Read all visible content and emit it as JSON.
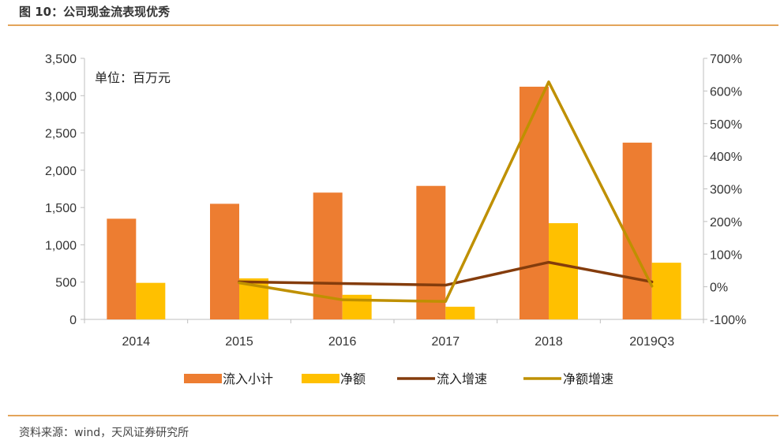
{
  "figure": {
    "title": "图 10：公司现金流表现优秀",
    "source": "资料来源：wind，天风证券研究所"
  },
  "chart_data": {
    "type": "bar",
    "title": "",
    "unit_label": "单位：百万元",
    "categories": [
      "2014",
      "2015",
      "2016",
      "2017",
      "2018",
      "2019Q3"
    ],
    "left_axis": {
      "ylim": [
        0,
        3500
      ],
      "ticks": [
        "0",
        "500",
        "1,000",
        "1,500",
        "2,000",
        "2,500",
        "3,000",
        "3,500"
      ]
    },
    "right_axis": {
      "ylim": [
        -100,
        700
      ],
      "ticks": [
        "-100%",
        "0%",
        "100%",
        "200%",
        "300%",
        "400%",
        "500%",
        "600%",
        "700%"
      ]
    },
    "grid": false,
    "legend_position": "bottom",
    "series": [
      {
        "name": "流入小计",
        "kind": "bar",
        "axis": "left",
        "color": "#ed7d31",
        "values": [
          1350,
          1550,
          1700,
          1790,
          3120,
          2370
        ]
      },
      {
        "name": "净额",
        "kind": "bar",
        "axis": "left",
        "color": "#ffc000",
        "values": [
          490,
          550,
          330,
          170,
          1290,
          760
        ]
      },
      {
        "name": "流入增速",
        "kind": "line",
        "axis": "right",
        "color": "#843c0c",
        "values": [
          null,
          15,
          10,
          5,
          75,
          15
        ]
      },
      {
        "name": "净额增速",
        "kind": "line",
        "axis": "right",
        "color": "#bf9000",
        "values": [
          null,
          12,
          -40,
          -45,
          628,
          2
        ]
      }
    ]
  }
}
